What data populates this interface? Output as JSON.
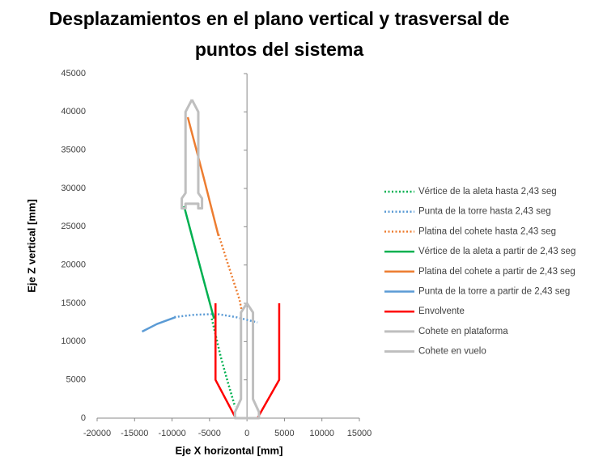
{
  "chart_data": {
    "type": "line",
    "title": "Desplazamientos en el plano vertical y trasversal de puntos del sistema",
    "x_label": "Eje X horizontal [mm]",
    "y_label": "Eje Z vertical [mm]",
    "xlim": [
      -20000,
      15000
    ],
    "xticks": [
      -20000,
      -15000,
      -10000,
      -5000,
      0,
      5000,
      10000,
      15000
    ],
    "ylim": [
      0,
      45000
    ],
    "yticks": [
      0,
      5000,
      10000,
      15000,
      20000,
      25000,
      30000,
      35000,
      40000,
      45000
    ],
    "grid": false,
    "legend": "right",
    "series": [
      {
        "name": "Vértice de la aleta hasta 2,43 seg",
        "color": "#00b050",
        "style": "dotted",
        "x": [
          -4700,
          -3500,
          -2500,
          -1600
        ],
        "values": [
          13000,
          8000,
          4500,
          1500
        ]
      },
      {
        "name": "Punta de la torre hasta 2,43 seg",
        "color": "#5b9bd5",
        "style": "dotted",
        "x": [
          -9700,
          -7000,
          -4000,
          -1500,
          1400
        ],
        "values": [
          13200,
          13500,
          13600,
          13200,
          12500
        ]
      },
      {
        "name": "Platina del cohete hasta 2,43 seg",
        "color": "#ed7d31",
        "style": "dotted",
        "x": [
          -3800,
          -2500,
          -1000,
          -700
        ],
        "values": [
          24000,
          20000,
          15500,
          14000
        ]
      },
      {
        "name": "Vértice de la aleta a partir de 2,43 seg",
        "color": "#00b050",
        "style": "solid",
        "x": [
          -8400,
          -7000,
          -5500,
          -4400
        ],
        "values": [
          27700,
          22500,
          17000,
          13000
        ]
      },
      {
        "name": "Platina del cohete a partir de 2,43 seg",
        "color": "#ed7d31",
        "style": "solid",
        "x": [
          -7900,
          -5800,
          -3800
        ],
        "values": [
          39300,
          31500,
          23800
        ]
      },
      {
        "name": "Punta de la torre a partir de 2,43 seg",
        "color": "#5b9bd5",
        "style": "solid",
        "x": [
          -14000,
          -12000,
          -9500
        ],
        "values": [
          11300,
          12300,
          13200
        ]
      },
      {
        "name": "Envolvente",
        "color": "#ff0000",
        "style": "solid",
        "x": [
          -4200,
          -4200,
          -1500,
          null,
          4300,
          4300,
          1400
        ],
        "values": [
          15000,
          5000,
          0,
          null,
          15000,
          5000,
          0
        ]
      },
      {
        "name": "Cohete en plataforma",
        "color": "#bfbfbf",
        "style": "solid",
        "x": [
          0,
          800,
          800,
          1600,
          1600,
          700,
          -700,
          -1600,
          -1600,
          -800,
          -800,
          0
        ],
        "values": [
          15000,
          13800,
          2500,
          800,
          0,
          0,
          0,
          0,
          800,
          2500,
          13800,
          15000
        ]
      },
      {
        "name": "Cohete en vuelo",
        "color": "#bfbfbf",
        "style": "solid",
        "x": [
          -7350,
          -6500,
          -6500,
          -6000,
          -6000,
          -6500,
          -6500,
          -8200,
          -8200,
          -8700,
          -8700,
          -8200,
          -8200,
          -7350
        ],
        "values": [
          41600,
          40000,
          29400,
          28700,
          27400,
          27400,
          28000,
          28000,
          27400,
          27400,
          28700,
          29400,
          40000,
          41600
        ]
      }
    ]
  }
}
